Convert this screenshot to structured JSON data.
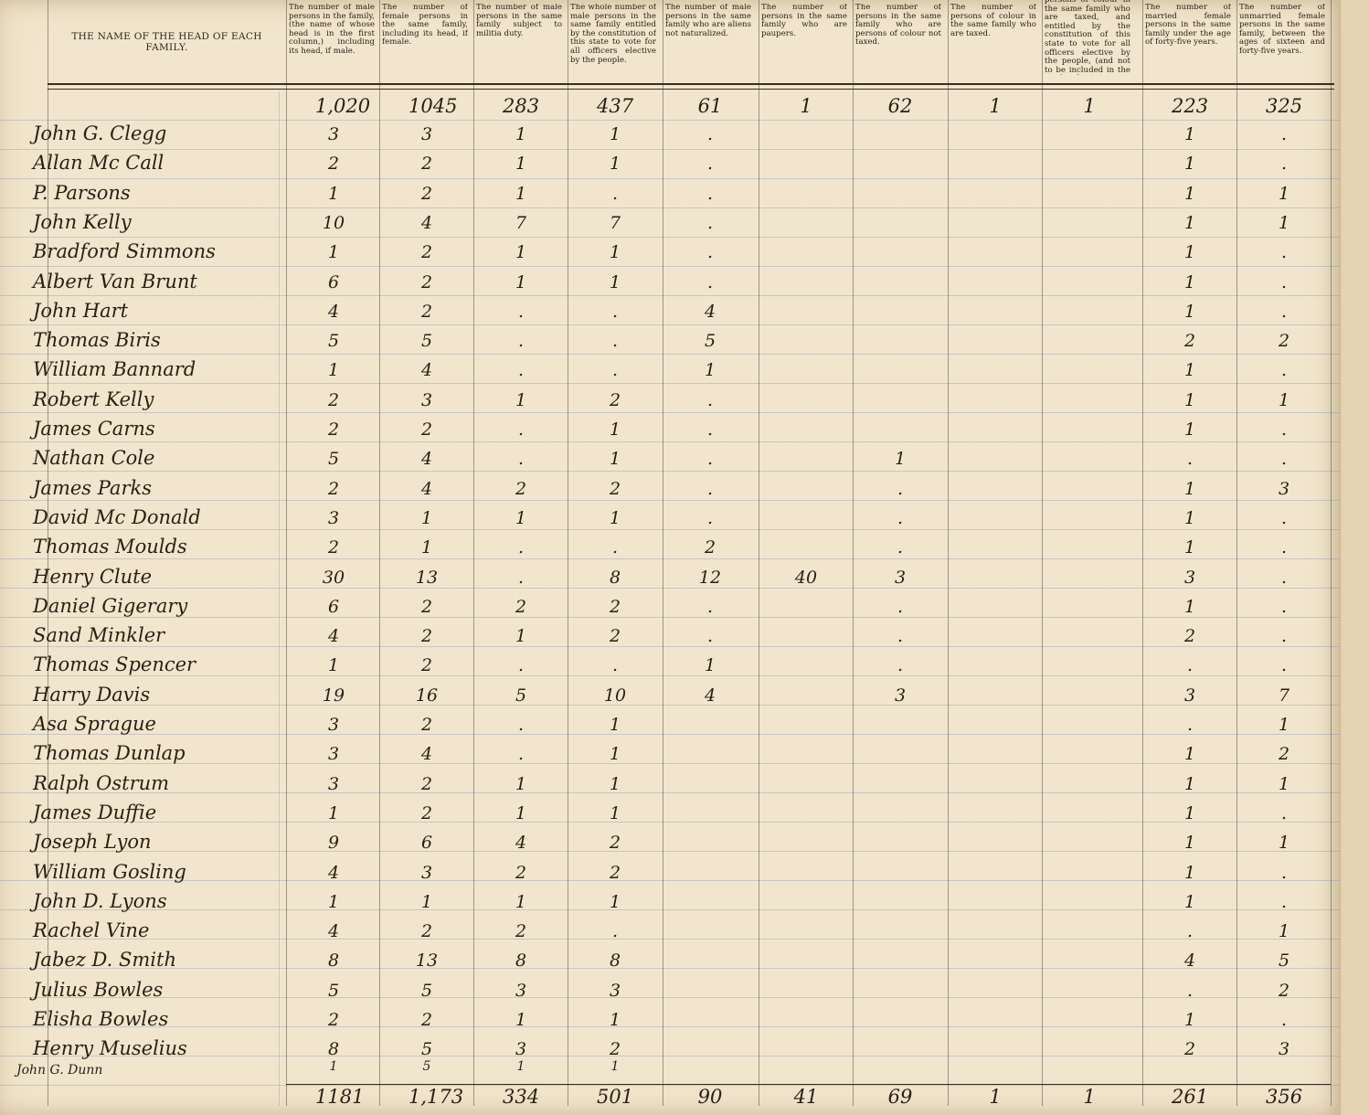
{
  "headers": {
    "name": "THE NAME OF THE HEAD OF EACH FAMILY.",
    "cols": [
      "The number of male persons in the family, (the name of whose head is in the first column,) including its head, if male.",
      "The number of female persons in the same family, including its head, if female.",
      "The number of male persons in the same family subject to militia duty.",
      "The whole number of male persons in the same family entitled by the constitution of this state to vote for all officers elective by the people.",
      "The number of male persons in the same family who are aliens not naturalized.",
      "The number of persons in the same family who are paupers.",
      "The number of persons in the same family who are persons of colour not taxed.",
      "The number of persons of colour in the same family who are taxed.",
      "persons of colour in the same family who are taxed, and entitled by the constitution of this state to vote for all officers elective by the people, (and not to be included in the ninth column.)",
      "The number of married female persons in the same family under the age of forty-five years.",
      "The number of unmarried female persons in the same family, between the ages of sixteen and forty-five years."
    ]
  },
  "carried": [
    "1,020",
    "1045",
    "283",
    "437",
    "61",
    "1",
    "62",
    "1",
    "1",
    "223",
    "325"
  ],
  "rows": [
    {
      "name": "John G. Clegg",
      "v": [
        "3",
        "3",
        "1",
        "1",
        ".",
        "",
        "",
        "",
        "",
        "1",
        "."
      ]
    },
    {
      "name": "Allan Mc Call",
      "v": [
        "2",
        "2",
        "1",
        "1",
        ".",
        "",
        "",
        "",
        "",
        "1",
        "."
      ]
    },
    {
      "name": "P. Parsons",
      "v": [
        "1",
        "2",
        "1",
        ".",
        ".",
        "",
        "",
        "",
        "",
        "1",
        "1"
      ]
    },
    {
      "name": "John Kelly",
      "v": [
        "10",
        "4",
        "7",
        "7",
        ".",
        "",
        "",
        "",
        "",
        "1",
        "1"
      ]
    },
    {
      "name": "Bradford Simmons",
      "v": [
        "1",
        "2",
        "1",
        "1",
        ".",
        "",
        "",
        "",
        "",
        "1",
        "."
      ]
    },
    {
      "name": "Albert Van Brunt",
      "v": [
        "6",
        "2",
        "1",
        "1",
        ".",
        "",
        "",
        "",
        "",
        "1",
        "."
      ]
    },
    {
      "name": "John Hart",
      "v": [
        "4",
        "2",
        ".",
        ".",
        "4",
        "",
        "",
        "",
        "",
        "1",
        "."
      ]
    },
    {
      "name": "Thomas Biris",
      "v": [
        "5",
        "5",
        ".",
        ".",
        "5",
        "",
        "",
        "",
        "",
        "2",
        "2"
      ]
    },
    {
      "name": "William Bannard",
      "v": [
        "1",
        "4",
        ".",
        ".",
        "1",
        "",
        "",
        "",
        "",
        "1",
        "."
      ]
    },
    {
      "name": "Robert Kelly",
      "v": [
        "2",
        "3",
        "1",
        "2",
        ".",
        "",
        "",
        "",
        "",
        "1",
        "1"
      ]
    },
    {
      "name": "James Carns",
      "v": [
        "2",
        "2",
        ".",
        "1",
        ".",
        "",
        "",
        "",
        "",
        "1",
        "."
      ]
    },
    {
      "name": "Nathan Cole",
      "v": [
        "5",
        "4",
        ".",
        "1",
        ".",
        "",
        "1",
        "",
        "",
        ".",
        "."
      ]
    },
    {
      "name": "James Parks",
      "v": [
        "2",
        "4",
        "2",
        "2",
        ".",
        "",
        ".",
        "",
        "",
        "1",
        "3"
      ]
    },
    {
      "name": "David Mc Donald",
      "v": [
        "3",
        "1",
        "1",
        "1",
        ".",
        "",
        ".",
        "",
        "",
        "1",
        "."
      ]
    },
    {
      "name": "Thomas Moulds",
      "v": [
        "2",
        "1",
        ".",
        ".",
        "2",
        "",
        ".",
        "",
        "",
        "1",
        "."
      ]
    },
    {
      "name": "Henry Clute",
      "v": [
        "30",
        "13",
        ".",
        "8",
        "12",
        "40",
        "3",
        "",
        "",
        "3",
        "."
      ]
    },
    {
      "name": "Daniel Gigerary",
      "v": [
        "6",
        "2",
        "2",
        "2",
        ".",
        "",
        ".",
        "",
        "",
        "1",
        "."
      ]
    },
    {
      "name": "Sand Minkler",
      "v": [
        "4",
        "2",
        "1",
        "2",
        ".",
        "",
        ".",
        "",
        "",
        "2",
        "."
      ]
    },
    {
      "name": "Thomas Spencer",
      "v": [
        "1",
        "2",
        ".",
        ".",
        "1",
        "",
        ".",
        "",
        "",
        ".",
        "."
      ]
    },
    {
      "name": "Harry Davis",
      "v": [
        "19",
        "16",
        "5",
        "10",
        "4",
        "",
        "3",
        "",
        "",
        "3",
        "7"
      ]
    },
    {
      "name": "Asa Sprague",
      "v": [
        "3",
        "2",
        ".",
        "1",
        "",
        "",
        "",
        "",
        "",
        ".",
        "1"
      ]
    },
    {
      "name": "Thomas Dunlap",
      "v": [
        "3",
        "4",
        ".",
        "1",
        "",
        "",
        "",
        "",
        "",
        "1",
        "2"
      ]
    },
    {
      "name": "Ralph Ostrum",
      "v": [
        "3",
        "2",
        "1",
        "1",
        "",
        "",
        "",
        "",
        "",
        "1",
        "1"
      ]
    },
    {
      "name": "James Duffie",
      "v": [
        "1",
        "2",
        "1",
        "1",
        "",
        "",
        "",
        "",
        "",
        "1",
        "."
      ]
    },
    {
      "name": "Joseph Lyon",
      "v": [
        "9",
        "6",
        "4",
        "2",
        "",
        "",
        "",
        "",
        "",
        "1",
        "1"
      ]
    },
    {
      "name": "William Gosling",
      "v": [
        "4",
        "3",
        "2",
        "2",
        "",
        "",
        "",
        "",
        "",
        "1",
        "."
      ]
    },
    {
      "name": "John D. Lyons",
      "v": [
        "1",
        "1",
        "1",
        "1",
        "",
        "",
        "",
        "",
        "",
        "1",
        "."
      ]
    },
    {
      "name": "Rachel Vine",
      "v": [
        "4",
        "2",
        "2",
        ".",
        "",
        "",
        "",
        "",
        "",
        ".",
        "1"
      ]
    },
    {
      "name": "Jabez D. Smith",
      "v": [
        "8",
        "13",
        "8",
        "8",
        "",
        "",
        "",
        "",
        "",
        "4",
        "5"
      ]
    },
    {
      "name": "Julius Bowles",
      "v": [
        "5",
        "5",
        "3",
        "3",
        "",
        "",
        "",
        "",
        "",
        ".",
        "2"
      ]
    },
    {
      "name": "Elisha Bowles",
      "v": [
        "2",
        "2",
        "1",
        "1",
        "",
        "",
        "",
        "",
        "",
        "1",
        "."
      ]
    },
    {
      "name": "Henry Muselius",
      "v": [
        "8",
        "5",
        "3",
        "2",
        "",
        "",
        "",
        "",
        "",
        "2",
        "3"
      ]
    }
  ],
  "extra_row": {
    "name": "John G. Dunn",
    "v": [
      "1",
      "5",
      "1",
      "1"
    ]
  },
  "totals": [
    "1181",
    "1,173",
    "334",
    "501",
    "90",
    "41",
    "69",
    "1",
    "1",
    "261",
    "356"
  ]
}
